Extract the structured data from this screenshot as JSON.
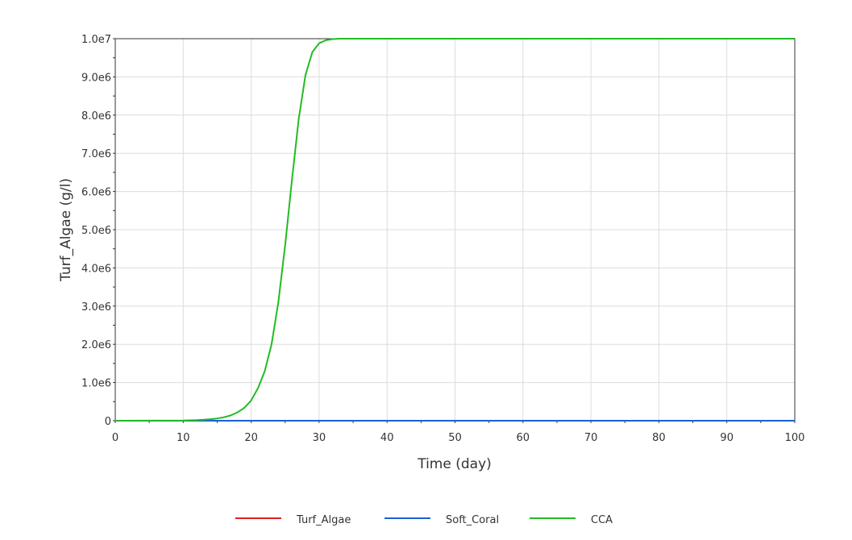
{
  "chart_data": {
    "type": "line",
    "title": "",
    "xlabel": "Time (day)",
    "ylabel": "Turf_Algae (g/l)",
    "xlim": [
      0,
      100
    ],
    "ylim": [
      0,
      10000000
    ],
    "grid": true,
    "legend_position": "bottom",
    "x_ticks": [
      {
        "value": 0,
        "label": "0"
      },
      {
        "value": 10,
        "label": "10"
      },
      {
        "value": 20,
        "label": "20"
      },
      {
        "value": 30,
        "label": "30"
      },
      {
        "value": 40,
        "label": "40"
      },
      {
        "value": 50,
        "label": "50"
      },
      {
        "value": 60,
        "label": "60"
      },
      {
        "value": 70,
        "label": "70"
      },
      {
        "value": 80,
        "label": "80"
      },
      {
        "value": 90,
        "label": "90"
      },
      {
        "value": 100,
        "label": "100"
      }
    ],
    "y_ticks": [
      {
        "value": 0,
        "label": "0"
      },
      {
        "value": 1000000,
        "label": "1.0e6"
      },
      {
        "value": 2000000,
        "label": "2.0e6"
      },
      {
        "value": 3000000,
        "label": "3.0e6"
      },
      {
        "value": 4000000,
        "label": "4.0e6"
      },
      {
        "value": 5000000,
        "label": "5.0e6"
      },
      {
        "value": 6000000,
        "label": "6.0e6"
      },
      {
        "value": 7000000,
        "label": "7.0e6"
      },
      {
        "value": 8000000,
        "label": "8.0e6"
      },
      {
        "value": 9000000,
        "label": "9.0e6"
      },
      {
        "value": 10000000,
        "label": "1.0e7"
      }
    ],
    "series": [
      {
        "name": "Turf_Algae",
        "color": "#e02020",
        "x": [
          0,
          100
        ],
        "y": [
          0,
          0
        ]
      },
      {
        "name": "Soft_Coral",
        "color": "#1a5fd6",
        "x": [
          0,
          100
        ],
        "y": [
          0,
          0
        ]
      },
      {
        "name": "CCA",
        "color": "#22bb22",
        "x": [
          0,
          10,
          12,
          13,
          14,
          15,
          16,
          17,
          18,
          19,
          20,
          21,
          22,
          23,
          24,
          25,
          26,
          27,
          28,
          29,
          30,
          31,
          32,
          33,
          35,
          40,
          100
        ],
        "y": [
          0,
          5000,
          15000,
          25000,
          40000,
          60000,
          90000,
          140000,
          220000,
          340000,
          530000,
          850000,
          1300000,
          2000000,
          3100000,
          4600000,
          6300000,
          7900000,
          9050000,
          9650000,
          9880000,
          9960000,
          9990000,
          10000000,
          10000000,
          10000000,
          10000000
        ]
      }
    ]
  }
}
